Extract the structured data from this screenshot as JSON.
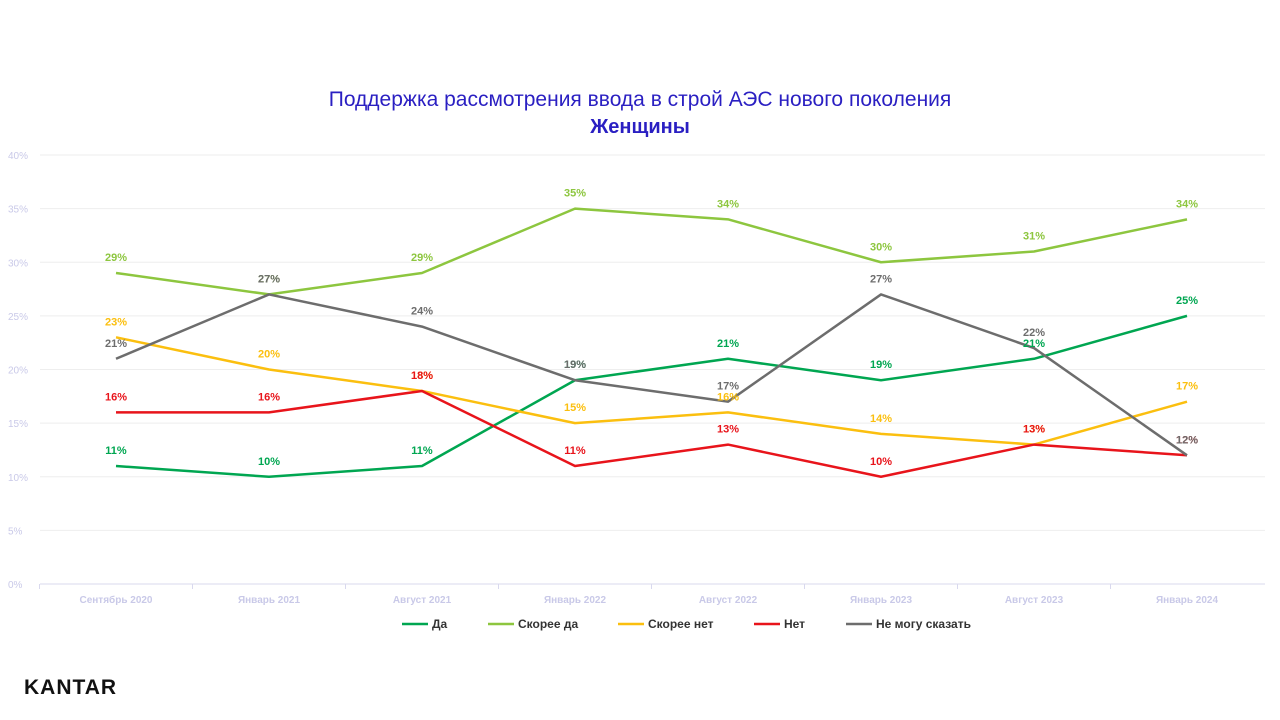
{
  "chart_data": {
    "type": "line",
    "title": "Поддержка рассмотрения ввода в строй АЭС нового поколения",
    "subtitle": "Женщины",
    "categories": [
      "Сентябрь 2020",
      "Январь 2021",
      "Август 2021",
      "Январь 2022",
      "Август 2022",
      "Январь 2023",
      "Август 2023",
      "Январь 2024"
    ],
    "ylim": [
      0,
      40
    ],
    "yticks": [
      "0%",
      "5%",
      "10%",
      "15%",
      "20%",
      "25%",
      "30%",
      "35%",
      "40%"
    ],
    "grid": true,
    "legend_position": "bottom",
    "series": [
      {
        "name": "Да",
        "color": "#00a651",
        "values": [
          11,
          10,
          11,
          19,
          21,
          19,
          21,
          25
        ],
        "labels": [
          "11%",
          "10%",
          "11%",
          "19%",
          "21%",
          "19%",
          "21%",
          "25%"
        ]
      },
      {
        "name": "Скорее да",
        "color": "#8dc63f",
        "values": [
          29,
          27,
          29,
          35,
          34,
          30,
          31,
          34
        ],
        "labels": [
          "29%",
          "27%",
          "29%",
          "35%",
          "34%",
          "30%",
          "31%",
          "34%"
        ]
      },
      {
        "name": "Скорее нет",
        "color": "#fbbf0f",
        "values": [
          23,
          20,
          18,
          15,
          16,
          14,
          13,
          17
        ],
        "labels": [
          "23%",
          "20%",
          "18%",
          "15%",
          "16%",
          "14%",
          "13%",
          "17%"
        ]
      },
      {
        "name": "Нет",
        "color": "#e8141b",
        "values": [
          16,
          16,
          18,
          11,
          13,
          10,
          13,
          12
        ],
        "labels": [
          "16%",
          "16%",
          "18%",
          "11%",
          "13%",
          "10%",
          "13%",
          "12%"
        ]
      },
      {
        "name": "Не могу сказать",
        "color": "#6d6d6d",
        "values": [
          21,
          27,
          24,
          19,
          17,
          27,
          22,
          12
        ],
        "labels": [
          "21%",
          "27%",
          "24%",
          "19%",
          "17%",
          "27%",
          "22%",
          "12%"
        ]
      }
    ]
  },
  "brand": {
    "logo_text": "KANTAR"
  }
}
